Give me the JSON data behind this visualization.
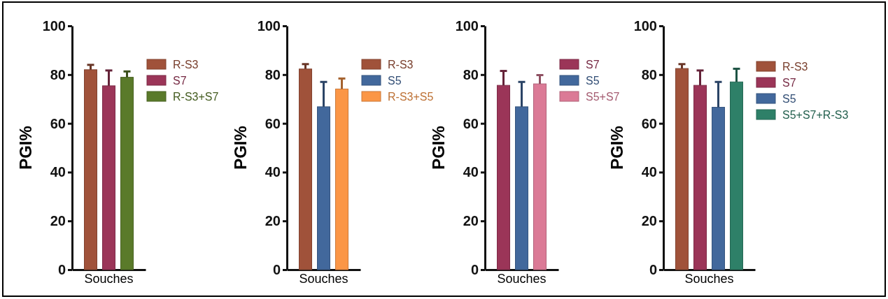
{
  "chart_data": [
    {
      "type": "bar",
      "categories": [
        "Souches"
      ],
      "ylabel": "PGI%",
      "ylim": [
        0,
        100
      ],
      "yticks": [
        0,
        20,
        40,
        60,
        80,
        100
      ],
      "legend": "right",
      "grid": false,
      "series": [
        {
          "name": "R-S3",
          "color": "#a0523a",
          "values": [
            82
          ],
          "errors": [
            [
              82,
              84
            ]
          ]
        },
        {
          "name": "S7",
          "color": "#9b3558",
          "values": [
            75.4
          ],
          "errors": [
            [
              75.4,
              81.7
            ]
          ]
        },
        {
          "name": "R-S3+S7",
          "color": "#5a7a2a",
          "values": [
            78.9
          ],
          "errors": [
            [
              78.9,
              81.3
            ]
          ]
        }
      ]
    },
    {
      "type": "bar",
      "categories": [
        "Souches"
      ],
      "ylabel": "PGI%",
      "ylim": [
        0,
        100
      ],
      "yticks": [
        0,
        20,
        40,
        60,
        80,
        100
      ],
      "legend": "right",
      "grid": false,
      "series": [
        {
          "name": "R-S3",
          "color": "#a0523a",
          "values": [
            82.3
          ],
          "errors": [
            [
              82.3,
              84.3
            ]
          ]
        },
        {
          "name": "S5",
          "color": "#42689c",
          "values": [
            66.8
          ],
          "errors": [
            [
              66.8,
              77
            ]
          ]
        },
        {
          "name": "R-S3+S5",
          "color": "#fb9646",
          "values": [
            74.1
          ],
          "errors": [
            [
              74.1,
              78.4
            ]
          ]
        }
      ]
    },
    {
      "type": "bar",
      "categories": [
        "Souches"
      ],
      "ylabel": "PGI%",
      "ylim": [
        0,
        100
      ],
      "yticks": [
        0,
        20,
        40,
        60,
        80,
        100
      ],
      "legend": "right",
      "grid": false,
      "series": [
        {
          "name": "S7",
          "color": "#9b3558",
          "values": [
            75.6
          ],
          "errors": [
            [
              75.6,
              81.5
            ]
          ]
        },
        {
          "name": "S5",
          "color": "#42689c",
          "values": [
            66.8
          ],
          "errors": [
            [
              66.8,
              77
            ]
          ]
        },
        {
          "name": "S5+S7",
          "color": "#db7a96",
          "values": [
            76.2
          ],
          "errors": [
            [
              76.2,
              79.8
            ]
          ]
        }
      ]
    },
    {
      "type": "bar",
      "categories": [
        "Souches"
      ],
      "ylabel": "PGI%",
      "ylim": [
        0,
        100
      ],
      "yticks": [
        0,
        20,
        40,
        60,
        80,
        100
      ],
      "legend": "right",
      "grid": false,
      "series": [
        {
          "name": "R-S3",
          "color": "#a0523a",
          "values": [
            82.5
          ],
          "errors": [
            [
              82.5,
              84.3
            ]
          ]
        },
        {
          "name": "S7",
          "color": "#9b3558",
          "values": [
            75.6
          ],
          "errors": [
            [
              75.6,
              81.7
            ]
          ]
        },
        {
          "name": "S5",
          "color": "#42689c",
          "values": [
            66.6
          ],
          "errors": [
            [
              66.6,
              77
            ]
          ]
        },
        {
          "name": "S5+S7+R-S3",
          "color": "#2e8068",
          "values": [
            77
          ],
          "errors": [
            [
              77,
              82.4
            ]
          ]
        }
      ]
    }
  ]
}
